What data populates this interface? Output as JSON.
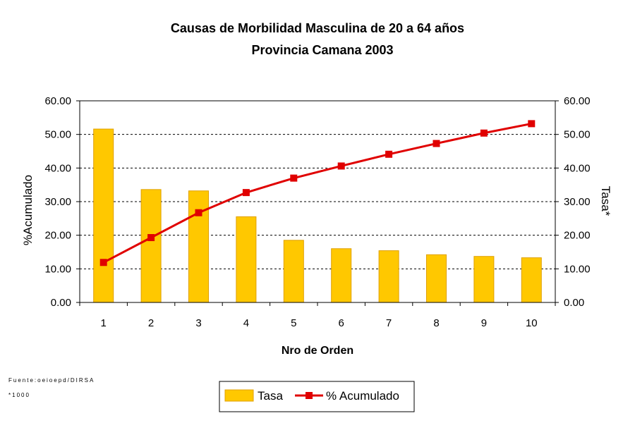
{
  "chart_data": {
    "type": "bar",
    "title": "Causas de Morbilidad Masculina de 20 a 64 años",
    "subtitle": "Provincia Camana 2003",
    "xlabel": "Nro de Orden",
    "ylabel_left": "%Acumulado",
    "ylabel_right": "Tasa*",
    "categories": [
      "1",
      "2",
      "3",
      "4",
      "5",
      "6",
      "7",
      "8",
      "9",
      "10"
    ],
    "ylim": [
      0,
      60
    ],
    "yticks": [
      "0.00",
      "10.00",
      "20.00",
      "30.00",
      "40.00",
      "50.00",
      "60.00"
    ],
    "grid": true,
    "series": [
      {
        "name": "Tasa",
        "type": "bar",
        "color": "#FFC800",
        "values": [
          51.6,
          33.6,
          33.2,
          25.5,
          18.5,
          16.0,
          15.4,
          14.2,
          13.7,
          13.3
        ]
      },
      {
        "name": "% Acumulado",
        "type": "line",
        "color": "#E00000",
        "values": [
          11.9,
          19.3,
          26.7,
          32.7,
          37.0,
          40.6,
          44.1,
          47.3,
          50.4,
          53.2
        ]
      }
    ],
    "legend_position": "bottom-center"
  },
  "source_note": "Fuente:oeioepd/DIRSA",
  "footnote": "*1000"
}
